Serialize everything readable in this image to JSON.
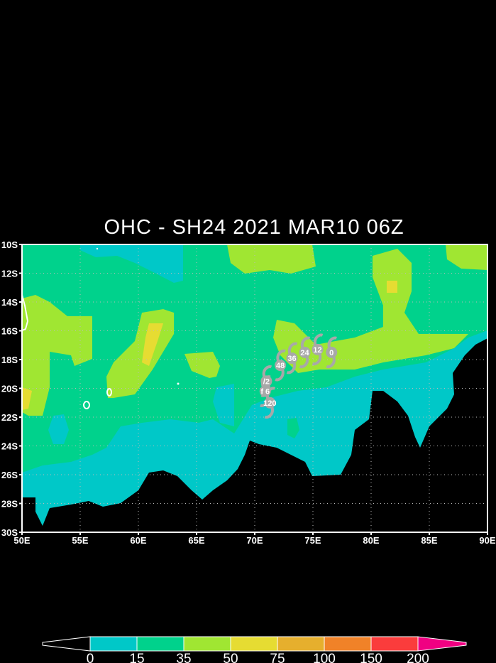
{
  "title": "OHC - SH24 2021 MAR10 06Z",
  "map": {
    "lon_range": [
      50,
      90
    ],
    "lat_range": [
      -30,
      -10
    ],
    "lat_labels": [
      "10S",
      "12S",
      "14S",
      "16S",
      "18S",
      "20S",
      "22S",
      "24S",
      "26S",
      "28S",
      "30S"
    ],
    "lon_labels": [
      "50E",
      "55E",
      "60E",
      "65E",
      "70E",
      "75E",
      "80E",
      "85E",
      "90E"
    ],
    "grid": true,
    "land_color": "#000000"
  },
  "track": [
    {
      "label": "0",
      "lon": 76.6,
      "lat": -17.5
    },
    {
      "label": "12",
      "lon": 75.4,
      "lat": -17.3
    },
    {
      "label": "24",
      "lon": 74.3,
      "lat": -17.5
    },
    {
      "label": "36",
      "lon": 73.2,
      "lat": -17.9
    },
    {
      "label": "48",
      "lon": 72.2,
      "lat": -18.4
    },
    {
      "label": "/2",
      "lon": 71.0,
      "lat": -19.5
    },
    {
      "label": "f 6",
      "lon": 70.9,
      "lat": -20.2
    },
    {
      "label": "120",
      "lon": 71.3,
      "lat": -21.0
    }
  ],
  "track_color": "#a8a8a8",
  "colorbar": {
    "labels": [
      "0",
      "15",
      "35",
      "50",
      "75",
      "100",
      "150",
      "200"
    ],
    "colors": [
      "#00c8c8",
      "#00d28c",
      "#a0e632",
      "#e6dc32",
      "#e6af2d",
      "#f08228",
      "#fa3c3c",
      "#f00082"
    ],
    "under_color": "#000000"
  }
}
